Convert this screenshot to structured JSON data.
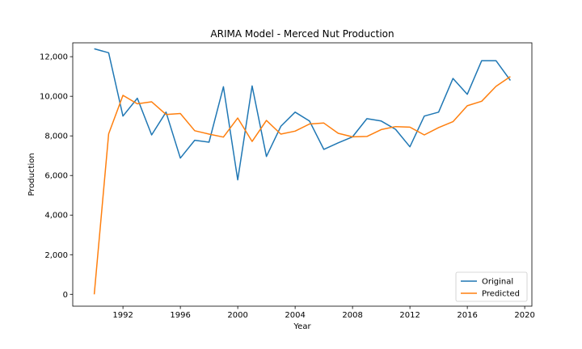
{
  "chart_data": {
    "type": "line",
    "title": "ARIMA Model - Merced Nut Production",
    "xlabel": "Year",
    "ylabel": "Production",
    "xlim": [
      1988.5,
      2020.5
    ],
    "ylim": [
      -600,
      12700
    ],
    "x_ticks": [
      1992,
      1996,
      2000,
      2004,
      2008,
      2012,
      2016,
      2020
    ],
    "y_ticks": [
      0,
      2000,
      4000,
      6000,
      8000,
      10000,
      12000
    ],
    "y_tick_labels": [
      "0",
      "2,000",
      "4,000",
      "6,000",
      "8,000",
      "10,000",
      "12,000"
    ],
    "grid": false,
    "legend_position": "lower-right",
    "x": [
      1990,
      1991,
      1992,
      1993,
      1994,
      1995,
      1996,
      1997,
      1998,
      1999,
      2000,
      2001,
      2002,
      2003,
      2004,
      2005,
      2006,
      2007,
      2008,
      2009,
      2010,
      2011,
      2012,
      2013,
      2014,
      2015,
      2016,
      2017,
      2018,
      2019
    ],
    "series": [
      {
        "name": "Original",
        "color": "#1f77b4",
        "values": [
          12400,
          12200,
          9000,
          9900,
          8050,
          9200,
          6880,
          7780,
          7680,
          10480,
          5780,
          10520,
          6960,
          8480,
          9200,
          8750,
          7320,
          7650,
          7950,
          8870,
          8750,
          8330,
          7450,
          9000,
          9200,
          10900,
          10100,
          11800,
          11800,
          10800
        ]
      },
      {
        "name": "Predicted",
        "color": "#ff7f0e",
        "values": [
          0,
          8100,
          10050,
          9620,
          9720,
          9080,
          9130,
          8260,
          8090,
          7940,
          8900,
          7720,
          8780,
          8090,
          8240,
          8600,
          8650,
          8130,
          7950,
          7970,
          8320,
          8470,
          8440,
          8050,
          8420,
          8720,
          9520,
          9750,
          10500,
          11000
        ]
      }
    ]
  }
}
